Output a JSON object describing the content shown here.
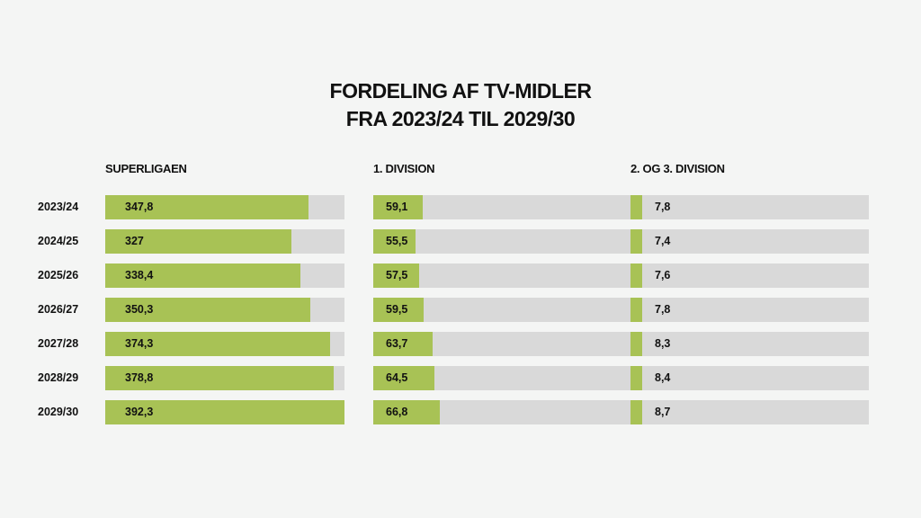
{
  "title_line1": "FORDELING AF TV-MIDLER",
  "title_line2": "FRA 2023/24 TIL 2029/30",
  "colors": {
    "fill": "#a8c255",
    "track": "#d9d9d9",
    "background": "#f4f5f4"
  },
  "chart_data": [
    {
      "type": "bar",
      "orientation": "horizontal",
      "title": "SUPERLIGAEN",
      "categories": [
        "2023/24",
        "2024/25",
        "2025/26",
        "2026/27",
        "2027/28",
        "2028/29",
        "2029/30"
      ],
      "values": [
        347.8,
        327,
        338.4,
        350.3,
        374.3,
        378.8,
        392.3
      ],
      "labels": [
        "347,8",
        "327",
        "338,4",
        "350,3",
        "374,3",
        "378,8",
        "392,3"
      ],
      "xlim": [
        98,
        392.3
      ]
    },
    {
      "type": "bar",
      "orientation": "horizontal",
      "title": "1. DIVISION",
      "categories": [
        "2023/24",
        "2024/25",
        "2025/26",
        "2026/27",
        "2027/28",
        "2028/29",
        "2029/30"
      ],
      "values": [
        59.1,
        55.5,
        57.5,
        59.5,
        63.7,
        64.5,
        66.8
      ],
      "labels": [
        "59,1",
        "55,5",
        "57,5",
        "59,5",
        "63,7",
        "64,5",
        "66,8"
      ],
      "xlim": [
        36,
        183
      ]
    },
    {
      "type": "bar",
      "orientation": "horizontal",
      "title": "2. OG 3. DIVISION",
      "categories": [
        "2023/24",
        "2024/25",
        "2025/26",
        "2026/27",
        "2027/28",
        "2028/29",
        "2029/30"
      ],
      "values": [
        7.8,
        7.4,
        7.6,
        7.8,
        8.3,
        8.4,
        8.7
      ],
      "labels": [
        "7,8",
        "7,4",
        "7,6",
        "7,8",
        "8,3",
        "8,4",
        "8,7"
      ],
      "xlim": [
        0,
        160
      ]
    }
  ]
}
